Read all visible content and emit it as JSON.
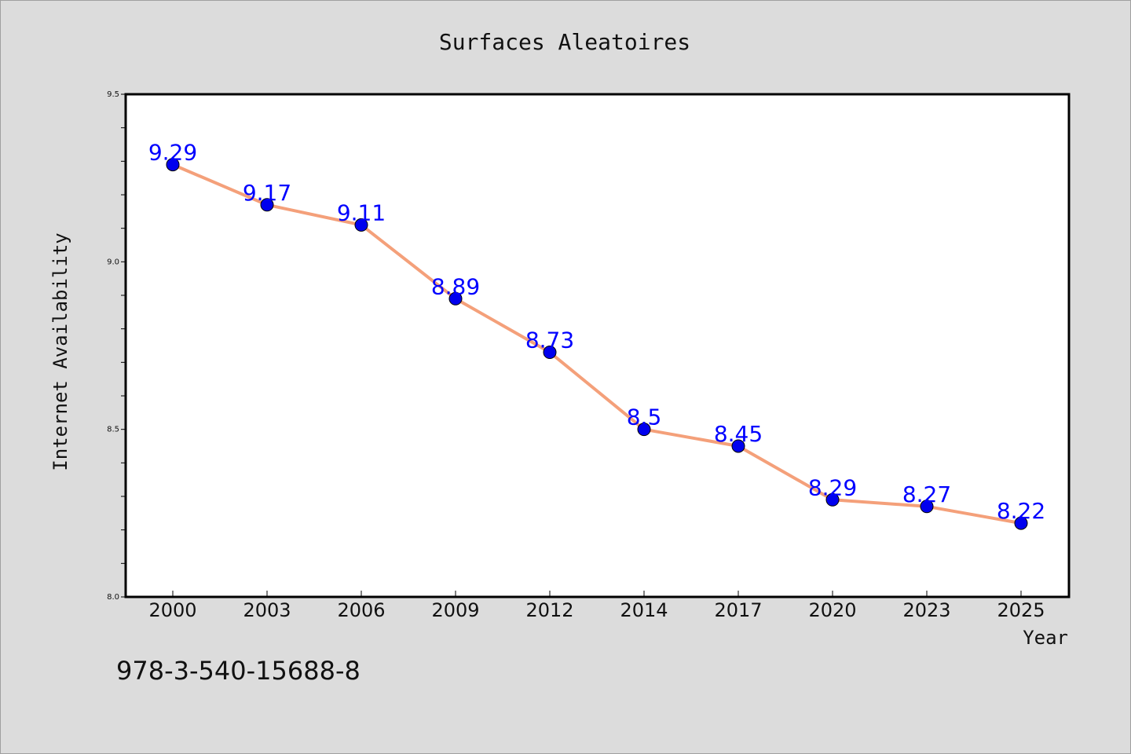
{
  "chart_data": {
    "type": "line",
    "title": "Surfaces Aleatoires",
    "xlabel": "Year",
    "ylabel": "Internet Availability",
    "categories": [
      "2000",
      "2003",
      "2006",
      "2009",
      "2012",
      "2014",
      "2017",
      "2020",
      "2023",
      "2025"
    ],
    "series": [
      {
        "values": [
          9.29,
          9.17,
          9.11,
          8.89,
          8.73,
          8.5,
          8.45,
          8.29,
          8.27,
          8.22
        ],
        "data_labels": [
          "9.29",
          "9.17",
          "9.11",
          "8.89",
          "8.73",
          "8.5",
          "8.45",
          "8.29",
          "8.27",
          "8.22"
        ],
        "line_color": "#f4a07a",
        "marker_color": "#0000ee",
        "label_color": "#0000ff"
      }
    ],
    "ylim": [
      8.0,
      9.5
    ],
    "yticks": [
      8.0,
      8.5,
      9.0,
      9.5
    ],
    "ytick_labels": [
      "8.0",
      "8.5",
      "9.0",
      "9.5"
    ],
    "grid": false,
    "legend": "none",
    "background_color": "#dcdcdc",
    "plot_background": "#ffffff"
  },
  "footnote": "978-3-540-15688-8"
}
